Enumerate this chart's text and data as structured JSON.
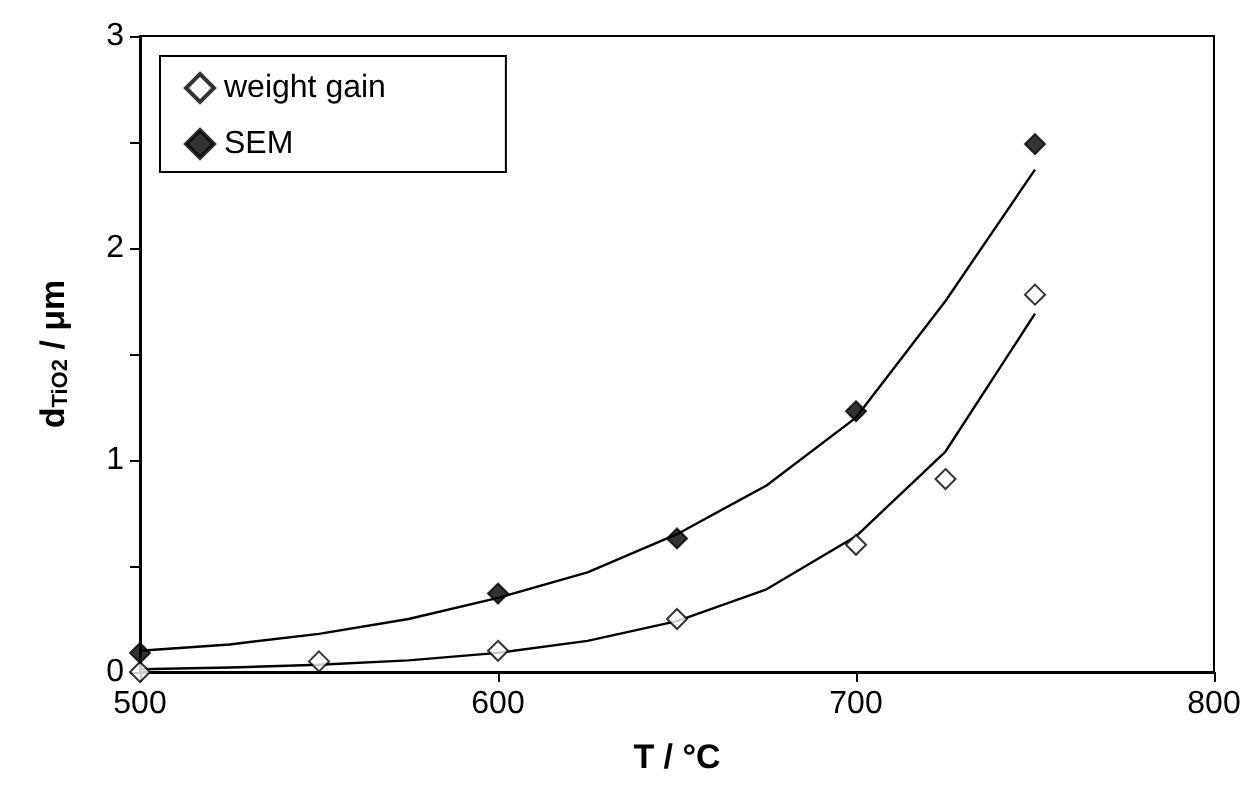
{
  "chart_data": {
    "type": "scatter",
    "xlabel": "T / °C",
    "ylabel": "d$_{TiO2}$ / μm",
    "xlim": [
      500,
      800
    ],
    "xticks": [
      500,
      600,
      700,
      800
    ],
    "ylim": [
      0,
      3
    ],
    "yticks": [
      0,
      {
        "value": 0.5,
        "label": null
      },
      1,
      {
        "value": 1.5,
        "label": null
      },
      2,
      {
        "value": 2.5,
        "label": null
      },
      3
    ],
    "grid": false,
    "legend": "top left",
    "marker": "diamond",
    "series": [
      {
        "name": "weight gain",
        "color": "#ffffff",
        "x": [
          500,
          550,
          600,
          650,
          700,
          725,
          750
        ],
        "values": [
          0,
          0.05,
          0.1,
          0.25,
          0.6,
          0.91,
          1.78
        ]
      },
      {
        "name": "SEM",
        "color": "#000000",
        "x": [
          500,
          600,
          650,
          700,
          750
        ],
        "values": [
          0.09,
          0.37,
          0.63,
          1.23,
          2.49
        ]
      },
      {
        "type": "line",
        "marker": "none",
        "color": "#000000",
        "x": [
          500,
          525,
          550,
          575,
          600,
          625,
          650,
          675,
          700,
          725,
          750
        ],
        "values": [
          0.013,
          0.021,
          0.034,
          0.055,
          0.09,
          0.147,
          0.24,
          0.39,
          0.64,
          1.04,
          1.69
        ]
      },
      {
        "type": "line",
        "marker": "none",
        "color": "#000000",
        "x": [
          500,
          525,
          550,
          575,
          600,
          625,
          650,
          675,
          700,
          725,
          750
        ],
        "values": [
          0.1,
          0.13,
          0.18,
          0.25,
          0.35,
          0.47,
          0.65,
          0.88,
          1.2,
          1.75,
          2.37
        ]
      }
    ]
  }
}
